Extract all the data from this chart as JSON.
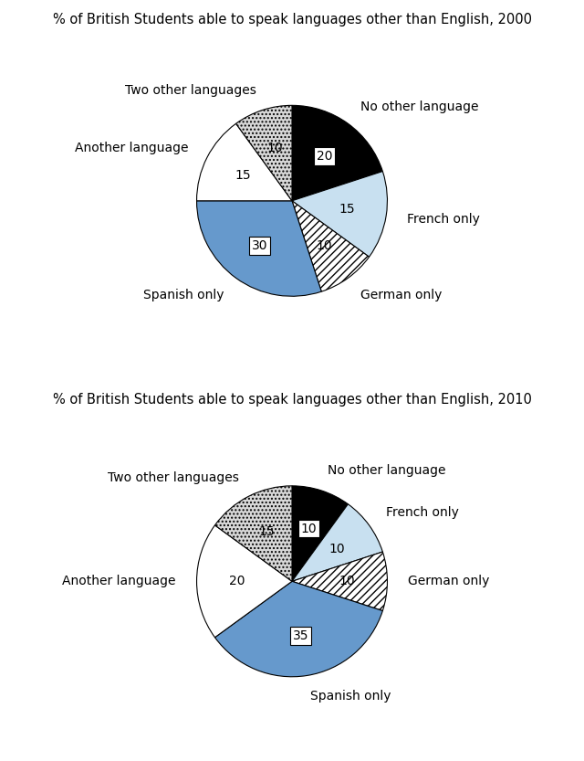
{
  "chart1": {
    "title": "% of British Students able to speak languages other than English, 2000",
    "labels": [
      "No other language",
      "French only",
      "German only",
      "Spanish only",
      "Another language",
      "Two other languages"
    ],
    "values": [
      20,
      15,
      10,
      30,
      15,
      10
    ],
    "colors": [
      "#000000",
      "#c8e0f0",
      "#ffffff",
      "#6699cc",
      "#ffffff",
      "#d8d8d8"
    ],
    "hatches": [
      "",
      "",
      "////",
      "",
      "",
      "...."
    ],
    "label_values": [
      "20",
      "15",
      "10",
      "30",
      "15",
      "10"
    ],
    "label_has_box": [
      true,
      false,
      false,
      true,
      false,
      false
    ],
    "value_colors": [
      "white",
      "black",
      "black",
      "black",
      "black",
      "black"
    ]
  },
  "chart2": {
    "title": "% of British Students able to speak languages other than English, 2010",
    "labels": [
      "No other language",
      "French only",
      "German only",
      "Spanish only",
      "Another language",
      "Two other languages"
    ],
    "values": [
      10,
      10,
      10,
      35,
      20,
      15
    ],
    "colors": [
      "#000000",
      "#c8e0f0",
      "#ffffff",
      "#6699cc",
      "#ffffff",
      "#d8d8d8"
    ],
    "hatches": [
      "",
      "",
      "////",
      "",
      "",
      "...."
    ],
    "label_values": [
      "10",
      "10",
      "10",
      "35",
      "20",
      "15"
    ],
    "label_has_box": [
      true,
      false,
      false,
      true,
      false,
      false
    ],
    "value_colors": [
      "white",
      "black",
      "black",
      "black",
      "black",
      "black"
    ]
  },
  "bg_color": "#ffffff",
  "title_fontsize": 10.5,
  "label_fontsize": 10,
  "value_fontsize": 10
}
